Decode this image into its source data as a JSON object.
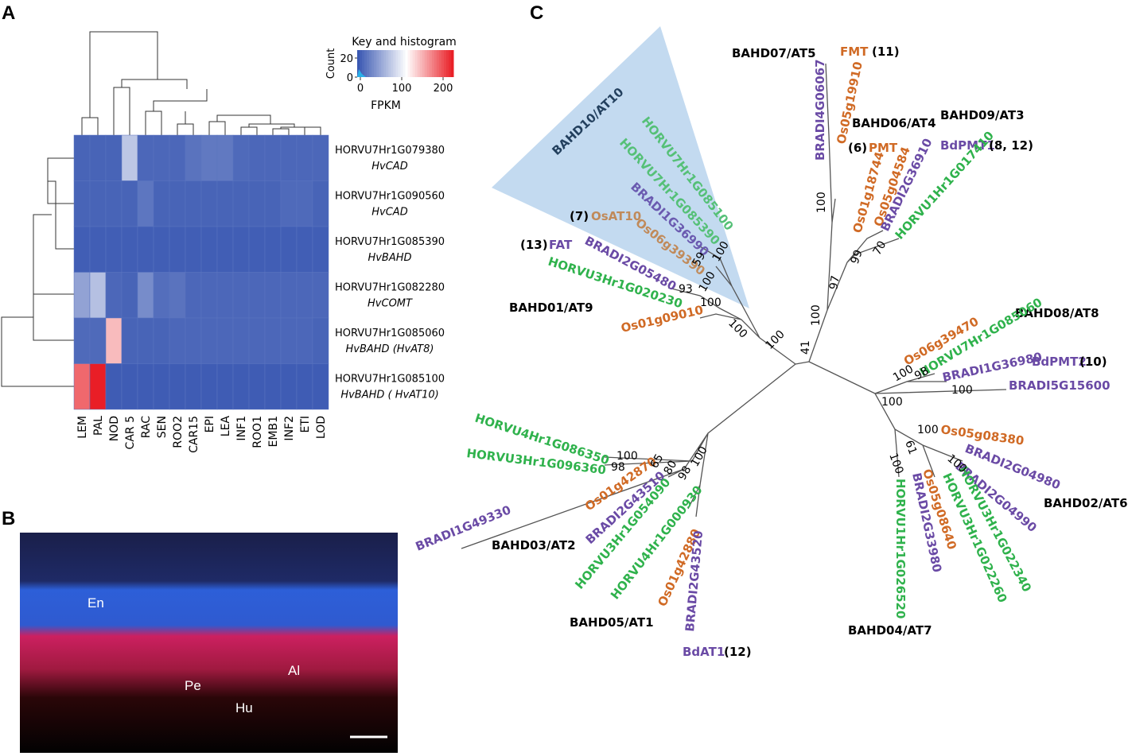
{
  "panels": {
    "a": {
      "label": "A",
      "key": {
        "title": "Key and histogram",
        "count_label": "Count",
        "count_ticks": [
          0,
          20
        ],
        "scale_label": "FPKM",
        "scale_ticks": [
          0,
          100,
          200
        ],
        "scale_lim": [
          0,
          225
        ]
      },
      "columns": [
        "LEM",
        "PAL",
        "NOD",
        "CAR 5",
        "RAC",
        "SEN",
        "ROO2",
        "CAR15",
        "EPI",
        "LEA",
        "INF1",
        "ROO1",
        "EMB1",
        "INF2",
        "ETI",
        "LOD"
      ],
      "rows": [
        {
          "gene": "HORVU7Hr1G079380",
          "name": "HvCAD",
          "values": [
            8,
            8,
            8,
            75,
            10,
            10,
            10,
            18,
            22,
            22,
            12,
            10,
            10,
            10,
            10,
            10
          ]
        },
        {
          "gene": "HORVU7Hr1G090560",
          "name": "HvCAD",
          "values": [
            8,
            8,
            8,
            8,
            20,
            8,
            8,
            8,
            8,
            8,
            8,
            8,
            8,
            12,
            12,
            8
          ]
        },
        {
          "gene": "HORVU7Hr1G085390",
          "name": "HvBAHD",
          "values": [
            4,
            4,
            4,
            4,
            4,
            4,
            4,
            4,
            4,
            4,
            4,
            4,
            4,
            4,
            4,
            4
          ]
        },
        {
          "gene": "HORVU7Hr1G082280",
          "name": "HvCOMT",
          "values": [
            50,
            70,
            10,
            8,
            35,
            15,
            18,
            10,
            10,
            10,
            10,
            10,
            10,
            10,
            10,
            10
          ]
        },
        {
          "gene": "HORVU7Hr1G085060",
          "name": "HvBAHD (HvAT8)",
          "values": [
            12,
            12,
            145,
            8,
            8,
            8,
            10,
            10,
            10,
            10,
            10,
            10,
            10,
            10,
            10,
            8
          ]
        },
        {
          "gene": "HORVU7Hr1G085100",
          "name": "HvBAHD ( HvAT10)",
          "values": [
            185,
            220,
            3,
            3,
            3,
            3,
            3,
            3,
            3,
            3,
            3,
            3,
            3,
            3,
            3,
            3
          ]
        }
      ]
    },
    "b": {
      "label": "B",
      "annotations": [
        "En",
        "Al",
        "Pe",
        "Hu"
      ]
    },
    "c": {
      "label": "C",
      "labels": [
        {
          "text": "BAHD10/AT10",
          "color": "#23405e"
        },
        {
          "text": "BAHD07/AT5",
          "color": "#000000"
        },
        {
          "text": "FMT",
          "color": "#d06a25"
        },
        {
          "text": "(11)",
          "color": "#000000"
        },
        {
          "text": "BAHD06/AT4",
          "color": "#000000"
        },
        {
          "text": "BAHD09/AT3",
          "color": "#000000"
        },
        {
          "text": "(6)",
          "color": "#000000"
        },
        {
          "text": "PMT",
          "color": "#d06a25"
        },
        {
          "text": "BdPMT1",
          "color": "#6a4aa5"
        },
        {
          "text": "(8, 12)",
          "color": "#000000"
        },
        {
          "text": "(7)",
          "color": "#000000"
        },
        {
          "text": "OsAT10",
          "color": "#c08a5a"
        },
        {
          "text": "(13)",
          "color": "#000000"
        },
        {
          "text": "FAT",
          "color": "#6a4aa5"
        },
        {
          "text": "BAHD01/AT9",
          "color": "#000000"
        },
        {
          "text": "BAHD08/AT8",
          "color": "#000000"
        },
        {
          "text": "BdPMT2",
          "color": "#6a4aa5"
        },
        {
          "text": "(10)",
          "color": "#000000"
        },
        {
          "text": "BAHD02/AT6",
          "color": "#000000"
        },
        {
          "text": "BAHD03/AT2",
          "color": "#000000"
        },
        {
          "text": "BAHD05/AT1",
          "color": "#000000"
        },
        {
          "text": "BAHD04/AT7",
          "color": "#000000"
        },
        {
          "text": "BdAT1",
          "color": "#6a4aa5"
        },
        {
          "text": "(12)",
          "color": "#000000"
        },
        {
          "text": "BRADI4G06067",
          "color": "#6a4aa5"
        },
        {
          "text": "Os05g19910",
          "color": "#d06a25"
        },
        {
          "text": "Os01g18744",
          "color": "#d06a25"
        },
        {
          "text": "Os05g04584",
          "color": "#d06a25"
        },
        {
          "text": "BRADI2G36910",
          "color": "#6a4aa5"
        },
        {
          "text": "HORVU1Hr1G017410",
          "color": "#2fb24c"
        },
        {
          "text": "HORVU7Hr1G085100",
          "color": "#55c077"
        },
        {
          "text": "HORVU7Hr1G085390",
          "color": "#55c077"
        },
        {
          "text": "BRADI1G36990",
          "color": "#6a5ab0"
        },
        {
          "text": "Os06g39390",
          "color": "#c08a5a"
        },
        {
          "text": "BRADI2G05480",
          "color": "#6a4aa5"
        },
        {
          "text": "HORVU3Hr1G020230",
          "color": "#2fb24c"
        },
        {
          "text": "Os01g09010",
          "color": "#d06a25"
        },
        {
          "text": "HORVU7Hr1G085060",
          "color": "#2fb24c"
        },
        {
          "text": "Os06g39470",
          "color": "#d06a25"
        },
        {
          "text": "BRADI1G36980",
          "color": "#6a4aa5"
        },
        {
          "text": "BRADI5G15600",
          "color": "#6a4aa5"
        },
        {
          "text": "Os05g08380",
          "color": "#d06a25"
        },
        {
          "text": "BRADI2G04980",
          "color": "#6a4aa5"
        },
        {
          "text": "BRADI2G04990",
          "color": "#6a4aa5"
        },
        {
          "text": "HORVU3Hr1G022340",
          "color": "#2fb24c"
        },
        {
          "text": "HORVU3Hr1G022260",
          "color": "#2fb24c"
        },
        {
          "text": "Os05g08640",
          "color": "#d06a25"
        },
        {
          "text": "BRADI2G33980",
          "color": "#6a4aa5"
        },
        {
          "text": "HORVU1Hr1G026520",
          "color": "#2fb24c"
        },
        {
          "text": "HORVU4Hr1G086350",
          "color": "#2fb24c"
        },
        {
          "text": "HORVU3Hr1G096360",
          "color": "#2fb24c"
        },
        {
          "text": "BRADI1G49330",
          "color": "#6a4aa5"
        },
        {
          "text": "Os01g42870",
          "color": "#d06a25"
        },
        {
          "text": "BRADI2G43510",
          "color": "#6a4aa5"
        },
        {
          "text": "HORVU3Hr1G054090",
          "color": "#2fb24c"
        },
        {
          "text": "HORVU4Hr1G000930",
          "color": "#2fb24c"
        },
        {
          "text": "Os01g42880",
          "color": "#d06a25"
        },
        {
          "text": "BRADI2G43520",
          "color": "#6a4aa5"
        }
      ],
      "support": [
        100,
        59,
        100,
        93,
        100,
        100,
        100,
        41,
        100,
        97,
        99,
        70,
        100,
        100,
        98,
        100,
        100,
        100,
        61,
        100,
        100,
        100,
        98,
        65,
        80,
        98,
        100
      ]
    }
  }
}
